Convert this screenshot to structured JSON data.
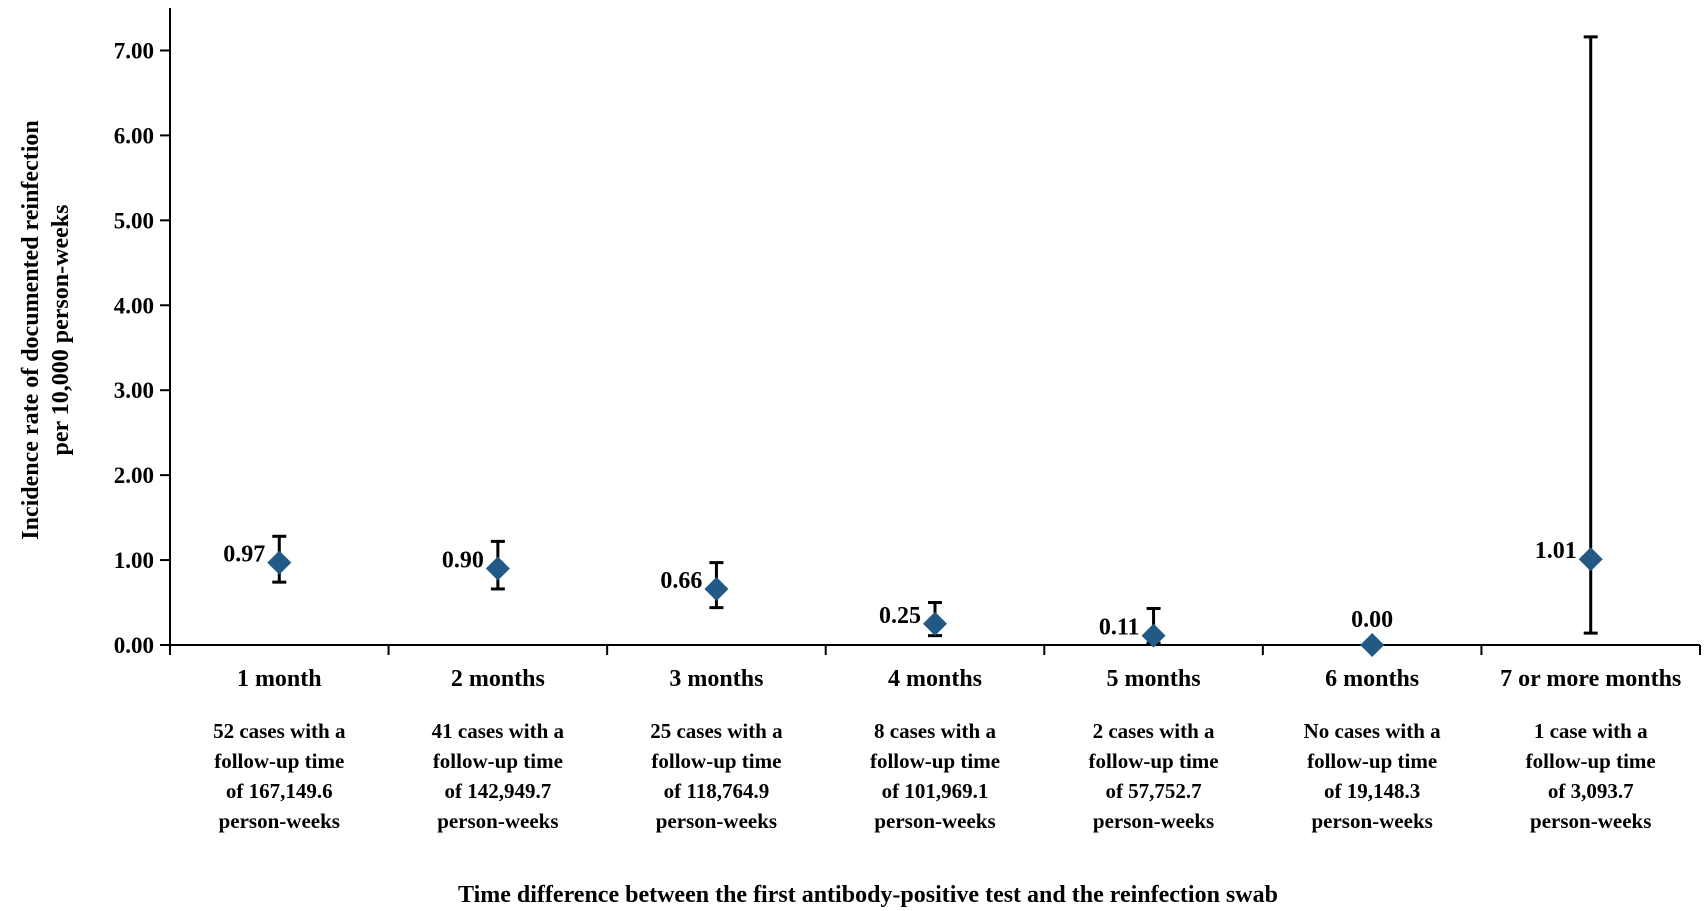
{
  "chart_data": {
    "type": "scatter",
    "title": "",
    "xlabel": "Time difference between the first antibody-positive test and the reinfection swab",
    "ylabel_lines": [
      "Incidence rate of documented reinfection",
      "per 10,000 person-weeks"
    ],
    "ylim": [
      0,
      7.5
    ],
    "yticks": [
      "0.00",
      "1.00",
      "2.00",
      "3.00",
      "4.00",
      "5.00",
      "6.00",
      "7.00"
    ],
    "grid": false,
    "legend": "none",
    "marker_color": "#235a85",
    "categories": [
      "1 month",
      "2 months",
      "3 months",
      "4 months",
      "5 months",
      "6 months",
      "7 or more months"
    ],
    "values": [
      0.97,
      0.9,
      0.66,
      0.25,
      0.11,
      0.0,
      1.01
    ],
    "value_labels": [
      "0.97",
      "0.90",
      "0.66",
      "0.25",
      "0.11",
      "0.00",
      "1.01"
    ],
    "ci_lower": [
      0.74,
      0.66,
      0.44,
      0.11,
      0.02,
      0.0,
      0.14
    ],
    "ci_upper": [
      1.28,
      1.22,
      0.97,
      0.5,
      0.43,
      null,
      7.16
    ],
    "notes": [
      [
        "52 cases with a",
        "follow-up time",
        "of 167,149.6",
        "person-weeks"
      ],
      [
        "41 cases with a",
        "follow-up time",
        "of 142,949.7",
        "person-weeks"
      ],
      [
        "25 cases with a",
        "follow-up time",
        "of 118,764.9",
        "person-weeks"
      ],
      [
        "8 cases with a",
        "follow-up time",
        "of 101,969.1",
        "person-weeks"
      ],
      [
        "2 cases with a",
        "follow-up time",
        "of 57,752.7",
        "person-weeks"
      ],
      [
        "No cases with a",
        "follow-up time",
        "of 19,148.3",
        "person-weeks"
      ],
      [
        "1 case with a",
        "follow-up time",
        "of 3,093.7",
        "person-weeks"
      ]
    ]
  }
}
